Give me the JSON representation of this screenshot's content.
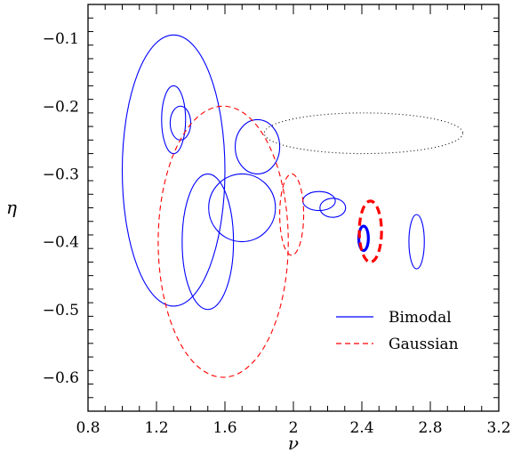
{
  "chart_data": {
    "type": "scatter",
    "title": "",
    "xlabel": "ν",
    "ylabel": "η",
    "xlim": [
      0.8,
      3.2
    ],
    "ylim": [
      -0.65,
      -0.05
    ],
    "grid": false,
    "legend_position": "bottom-right",
    "x_tick_labels": [
      "0.8",
      "1.2",
      "1.6",
      "2",
      "2.4",
      "2.8",
      "3.2"
    ],
    "x_tick_values": [
      0.8,
      1.2,
      1.6,
      2.0,
      2.4,
      2.8,
      3.2
    ],
    "y_tick_labels": [
      "−0.1",
      "−0.2",
      "−0.3",
      "−0.4",
      "−0.5",
      "−0.6"
    ],
    "y_tick_values": [
      -0.1,
      -0.2,
      -0.3,
      -0.4,
      -0.5,
      -0.6
    ],
    "legend": [
      {
        "label": "Bimodal",
        "color": "#0000ff",
        "dash": "solid"
      },
      {
        "label": "Gaussian",
        "color": "#ff0000",
        "dash": "dashed"
      }
    ],
    "ellipses": [
      {
        "series": "Bimodal",
        "cx": 1.3,
        "cy": -0.295,
        "rx": 0.3,
        "ry": 0.2,
        "color": "#0000ff",
        "style": "solid",
        "weight": "thin"
      },
      {
        "series": "Bimodal",
        "cx": 1.3,
        "cy": -0.22,
        "rx": 0.07,
        "ry": 0.05,
        "color": "#0000ff",
        "style": "solid",
        "weight": "thin"
      },
      {
        "series": "Bimodal",
        "cx": 1.34,
        "cy": -0.225,
        "rx": 0.06,
        "ry": 0.025,
        "color": "#0000ff",
        "style": "solid",
        "weight": "thin"
      },
      {
        "series": "Bimodal",
        "cx": 1.79,
        "cy": -0.26,
        "rx": 0.13,
        "ry": 0.04,
        "color": "#0000ff",
        "style": "solid",
        "weight": "thin"
      },
      {
        "series": "Bimodal",
        "cx": 1.5,
        "cy": -0.4,
        "rx": 0.15,
        "ry": 0.1,
        "color": "#0000ff",
        "style": "solid",
        "weight": "thin"
      },
      {
        "series": "Bimodal",
        "cx": 1.7,
        "cy": -0.35,
        "rx": 0.195,
        "ry": 0.05,
        "color": "#0000ff",
        "style": "solid",
        "weight": "thin"
      },
      {
        "series": "Bimodal",
        "cx": 2.15,
        "cy": -0.34,
        "rx": 0.095,
        "ry": 0.014,
        "color": "#0000ff",
        "style": "solid",
        "weight": "thin"
      },
      {
        "series": "Bimodal",
        "cx": 2.23,
        "cy": -0.35,
        "rx": 0.075,
        "ry": 0.014,
        "color": "#0000ff",
        "style": "solid",
        "weight": "thin"
      },
      {
        "series": "Bimodal",
        "cx": 2.41,
        "cy": -0.395,
        "rx": 0.028,
        "ry": 0.018,
        "color": "#0000ff",
        "style": "solid",
        "weight": "thick"
      },
      {
        "series": "Bimodal",
        "cx": 2.72,
        "cy": -0.4,
        "rx": 0.045,
        "ry": 0.04,
        "color": "#0000ff",
        "style": "solid",
        "weight": "thin"
      },
      {
        "series": "Gaussian",
        "cx": 1.59,
        "cy": -0.4,
        "rx": 0.38,
        "ry": 0.2,
        "color": "#ff0000",
        "style": "dashed",
        "weight": "thin"
      },
      {
        "series": "Gaussian",
        "cx": 1.99,
        "cy": -0.36,
        "rx": 0.07,
        "ry": 0.06,
        "color": "#ff0000",
        "style": "dashed",
        "weight": "thin"
      },
      {
        "series": "Gaussian",
        "cx": 2.45,
        "cy": -0.385,
        "rx": 0.065,
        "ry": 0.045,
        "color": "#ff0000",
        "style": "dashed",
        "weight": "thick"
      },
      {
        "series": "",
        "cx": 2.41,
        "cy": -0.24,
        "rx": 0.58,
        "ry": 0.03,
        "color": "#000000",
        "style": "dotted",
        "weight": "thin"
      }
    ]
  }
}
